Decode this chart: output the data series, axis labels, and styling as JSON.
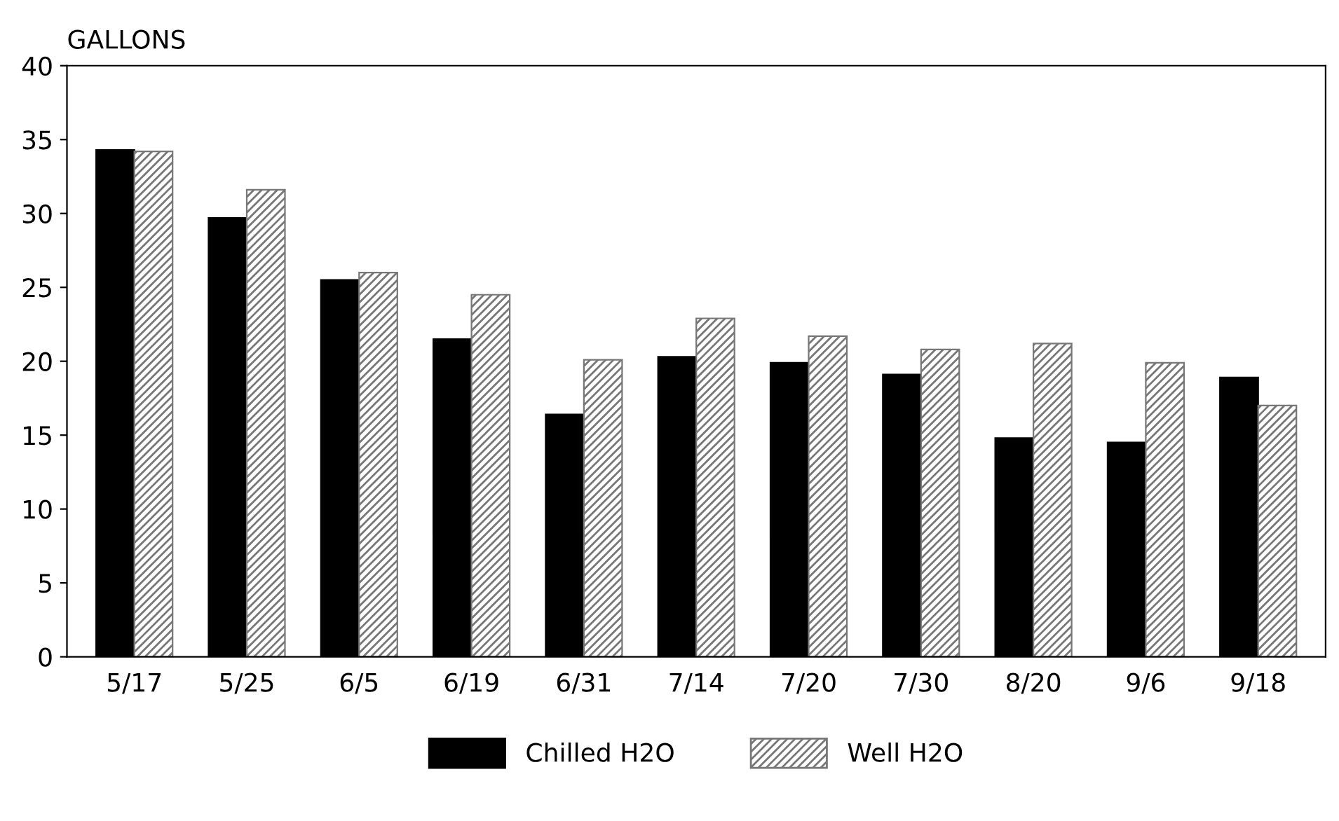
{
  "chart_data": {
    "type": "bar",
    "ylabel": "GALLONS",
    "categories": [
      "5/17",
      "5/25",
      "6/5",
      "6/19",
      "6/31",
      "7/14",
      "7/20",
      "7/30",
      "8/20",
      "9/6",
      "9/18"
    ],
    "series": [
      {
        "name": "Chilled H2O",
        "color": "#000000",
        "values": [
          34.3,
          29.7,
          25.5,
          21.5,
          16.4,
          20.3,
          19.9,
          19.1,
          14.8,
          14.5,
          18.9
        ]
      },
      {
        "name": "Well H2O",
        "color": "#777777",
        "values": [
          34.2,
          31.6,
          26.0,
          24.5,
          20.1,
          22.9,
          21.7,
          20.8,
          21.2,
          19.9,
          17.0
        ]
      }
    ],
    "ylim": [
      0,
      40
    ],
    "yticks": [
      0,
      5,
      10,
      15,
      20,
      25,
      30,
      35,
      40
    ],
    "grid": false,
    "legend": "bottom"
  }
}
